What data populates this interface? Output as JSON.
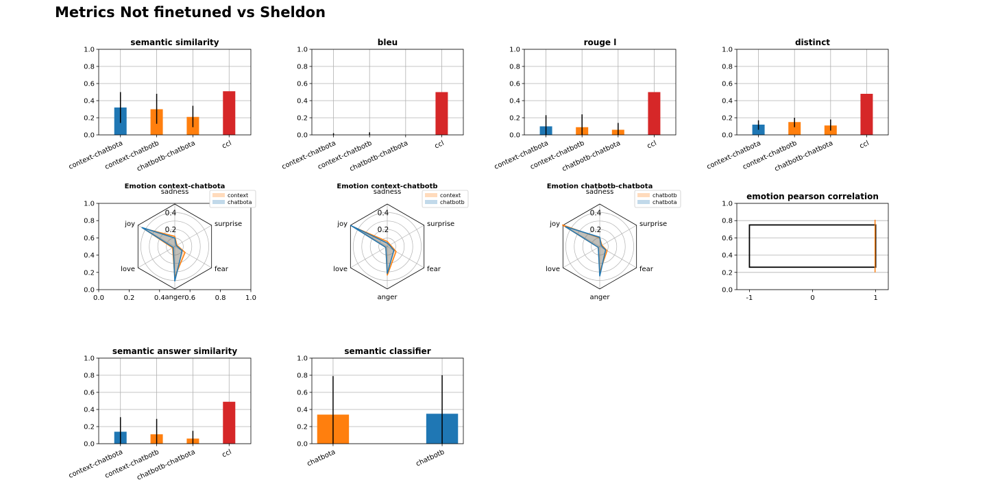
{
  "figure_title": "Metrics Not finetuned vs Sheldon",
  "colors": {
    "blue": "#1f77b4",
    "orange": "#ff7f0e",
    "red": "#d62728",
    "grid": "#b0b0b0",
    "error": "#000000"
  },
  "chart_data": [
    {
      "id": "semantic-similarity",
      "type": "bar",
      "title": "semantic similarity",
      "categories": [
        "context-chatbota",
        "context-chatbotb",
        "chatbotb-chatbota",
        "ccl"
      ],
      "values": [
        0.32,
        0.3,
        0.21,
        0.51
      ],
      "errors": [
        [
          0.14,
          0.5
        ],
        [
          0.13,
          0.48
        ],
        [
          0.09,
          0.34
        ],
        null
      ],
      "colors": [
        "blue",
        "orange",
        "orange",
        "red"
      ],
      "ylim": [
        0,
        1
      ],
      "yticks": [
        "0.0",
        "0.2",
        "0.4",
        "0.6",
        "0.8",
        "1.0"
      ],
      "grid": true
    },
    {
      "id": "bleu",
      "type": "bar",
      "title": "bleu",
      "categories": [
        "context-chatbota",
        "context-chatbotb",
        "chatbotb-chatbota",
        "ccl"
      ],
      "values": [
        0.0,
        0.0,
        0.0,
        0.5
      ],
      "errors": [
        [
          0.0,
          0.02
        ],
        [
          0.0,
          0.03
        ],
        null,
        null
      ],
      "colors": [
        "blue",
        "orange",
        "orange",
        "red"
      ],
      "ylim": [
        0,
        1
      ],
      "yticks": [
        "0.0",
        "0.2",
        "0.4",
        "0.6",
        "0.8",
        "1.0"
      ],
      "grid": true
    },
    {
      "id": "rouge-l",
      "type": "bar",
      "title": "rouge l",
      "categories": [
        "context-chatbota",
        "context-chatbotb",
        "chatbotb-chatbota",
        "ccl"
      ],
      "values": [
        0.1,
        0.09,
        0.06,
        0.5
      ],
      "errors": [
        [
          0.0,
          0.23
        ],
        [
          0.0,
          0.24
        ],
        [
          0.0,
          0.14
        ],
        null
      ],
      "colors": [
        "blue",
        "orange",
        "orange",
        "red"
      ],
      "ylim": [
        0,
        1
      ],
      "yticks": [
        "0.0",
        "0.2",
        "0.4",
        "0.6",
        "0.8",
        "1.0"
      ],
      "grid": true
    },
    {
      "id": "distinct",
      "type": "bar",
      "title": "distinct",
      "categories": [
        "context-chatbota",
        "context-chatbotb",
        "chatbotb-chatbota",
        "ccl"
      ],
      "values": [
        0.12,
        0.15,
        0.11,
        0.48
      ],
      "errors": [
        [
          0.06,
          0.17
        ],
        [
          0.09,
          0.2
        ],
        [
          0.05,
          0.18
        ],
        null
      ],
      "colors": [
        "blue",
        "orange",
        "orange",
        "red"
      ],
      "ylim": [
        0,
        1
      ],
      "yticks": [
        "0.0",
        "0.2",
        "0.4",
        "0.6",
        "0.8",
        "1.0"
      ],
      "grid": true
    },
    {
      "id": "emotion-context-chatbota",
      "type": "radar",
      "title": "Emotion context-chatbota",
      "axes": [
        "sadness",
        "surprise",
        "fear",
        "anger",
        "love",
        "joy"
      ],
      "rmax": 0.5,
      "rticks": [
        "0.2",
        "0.4"
      ],
      "series": [
        {
          "name": "context",
          "color": "orange",
          "values": [
            0.12,
            0.03,
            0.14,
            0.36,
            0.03,
            0.43
          ]
        },
        {
          "name": "chatbota",
          "color": "blue",
          "values": [
            0.1,
            0.02,
            0.1,
            0.41,
            0.02,
            0.45
          ]
        }
      ],
      "show_cartesian_axes": true,
      "xticks": [
        "0.0",
        "0.2",
        "0.4",
        "0.6",
        "0.8",
        "1.0"
      ],
      "yticks": [
        "0.0",
        "0.2",
        "0.4",
        "0.6",
        "0.8",
        "1.0"
      ],
      "legend": "upper-right"
    },
    {
      "id": "emotion-context-chatbotb",
      "type": "radar",
      "title": "Emotion context-chatbotb",
      "axes": [
        "sadness",
        "surprise",
        "fear",
        "anger",
        "love",
        "joy"
      ],
      "rmax": 0.5,
      "rticks": [
        "0.2",
        "0.4"
      ],
      "series": [
        {
          "name": "context",
          "color": "orange",
          "values": [
            0.06,
            0.04,
            0.12,
            0.34,
            0.02,
            0.47
          ]
        },
        {
          "name": "chatbotb",
          "color": "blue",
          "values": [
            0.04,
            0.03,
            0.09,
            0.32,
            0.02,
            0.5
          ]
        }
      ],
      "show_cartesian_axes": false,
      "legend": "upper-right"
    },
    {
      "id": "emotion-chatbotb-chatbota",
      "type": "radar",
      "title": "Emotion chatbotb-chatbota",
      "axes": [
        "sadness",
        "surprise",
        "fear",
        "anger",
        "love",
        "joy"
      ],
      "rmax": 0.5,
      "rticks": [
        "0.2",
        "0.4"
      ],
      "series": [
        {
          "name": "chatbotb",
          "color": "orange",
          "values": [
            0.1,
            0.03,
            0.1,
            0.3,
            0.02,
            0.51
          ]
        },
        {
          "name": "chatbota",
          "color": "blue",
          "values": [
            0.11,
            0.02,
            0.08,
            0.35,
            0.02,
            0.47
          ]
        }
      ],
      "show_cartesian_axes": false,
      "legend": "upper-right"
    },
    {
      "id": "emotion-pearson-correlation",
      "type": "boxplot",
      "title": "emotion pearson correlation",
      "xlim": [
        -1.2,
        1.2
      ],
      "xticks": [
        "-1",
        "0",
        "1"
      ],
      "xtick_values": [
        -1,
        0,
        1
      ],
      "ylim": [
        0,
        1
      ],
      "yticks": [
        "0.0",
        "0.2",
        "0.4",
        "0.6",
        "0.8",
        "1.0"
      ],
      "grid": true,
      "box": {
        "x0": -1,
        "x1": 1,
        "y0": 0.26,
        "y1": 0.75
      },
      "whisker": {
        "x": 0.99,
        "y0": 0.2,
        "y1": 0.81,
        "color": "orange"
      }
    },
    {
      "id": "semantic-answer-similarity",
      "type": "bar",
      "title": "semantic answer similarity",
      "categories": [
        "context-chatbota",
        "context-chatbotb",
        "chatbotb-chatbota",
        "ccl"
      ],
      "values": [
        0.14,
        0.11,
        0.06,
        0.49
      ],
      "errors": [
        [
          0.0,
          0.31
        ],
        [
          0.0,
          0.29
        ],
        [
          0.0,
          0.15
        ],
        null
      ],
      "colors": [
        "blue",
        "orange",
        "orange",
        "red"
      ],
      "ylim": [
        0,
        1
      ],
      "yticks": [
        "0.0",
        "0.2",
        "0.4",
        "0.6",
        "0.8",
        "1.0"
      ],
      "grid": true
    },
    {
      "id": "semantic-classifier",
      "type": "bar",
      "title": "semantic classifier",
      "categories": [
        "chatbota",
        "chatbotb"
      ],
      "values": [
        0.34,
        0.35
      ],
      "errors": [
        [
          0.0,
          0.79
        ],
        [
          0.0,
          0.8
        ]
      ],
      "colors": [
        "orange",
        "blue"
      ],
      "ylim": [
        0,
        1
      ],
      "yticks": [
        "0.0",
        "0.2",
        "0.4",
        "0.6",
        "0.8",
        "1.0"
      ],
      "grid": true,
      "wide": true
    }
  ]
}
